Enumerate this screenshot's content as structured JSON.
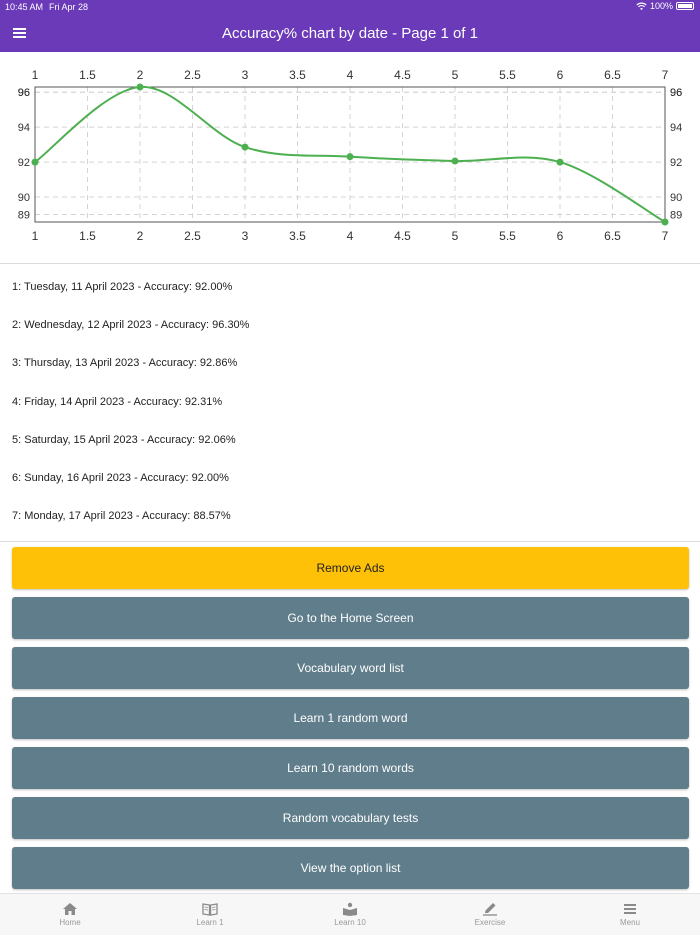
{
  "status_bar": {
    "time": "10:45 AM",
    "date": "Fri Apr 28",
    "battery": "100%"
  },
  "header": {
    "title": "Accuracy% chart by date - Page 1 of 1",
    "menu_icon": "hamburger-icon"
  },
  "chart_data": {
    "type": "line",
    "x": [
      1,
      2,
      3,
      4,
      5,
      6,
      7
    ],
    "values": [
      92.0,
      96.3,
      92.86,
      92.31,
      92.06,
      92.0,
      88.57
    ],
    "x_ticks": [
      "1",
      "1.5",
      "2",
      "2.5",
      "3",
      "3.5",
      "4",
      "4.5",
      "5",
      "5.5",
      "6",
      "6.5",
      "7"
    ],
    "y_ticks": [
      "89",
      "90",
      "92",
      "94",
      "96",
      "96"
    ],
    "xlim": [
      1,
      7
    ],
    "ylim": [
      88.57,
      96.3
    ],
    "grid": true,
    "line_color": "#4caf50"
  },
  "entries": [
    "1: Tuesday, 11 April 2023 - Accuracy: 92.00%",
    "2: Wednesday, 12 April 2023 - Accuracy: 96.30%",
    "3: Thursday, 13 April 2023 - Accuracy: 92.86%",
    "4: Friday, 14 April 2023 - Accuracy: 92.31%",
    "5: Saturday, 15 April 2023 - Accuracy: 92.06%",
    "6: Sunday, 16 April 2023 - Accuracy: 92.00%",
    "7: Monday, 17 April 2023 - Accuracy: 88.57%"
  ],
  "buttons": {
    "remove_ads": "Remove Ads",
    "home_screen": "Go to the Home Screen",
    "word_list": "Vocabulary word list",
    "learn_one": "Learn 1 random word",
    "learn_ten": "Learn 10 random words",
    "random_tests": "Random vocabulary tests",
    "option_list": "View the option list"
  },
  "bottom_nav": [
    {
      "label": "Home",
      "icon": "home-icon"
    },
    {
      "label": "Learn 1",
      "icon": "book-icon"
    },
    {
      "label": "Learn 10",
      "icon": "reader-icon"
    },
    {
      "label": "Exercise",
      "icon": "pencil-icon"
    },
    {
      "label": "Menu",
      "icon": "menu-icon"
    }
  ],
  "colors": {
    "primary": "#6a3ab8",
    "accent": "#ffc107",
    "button": "#607d8b",
    "line": "#4caf50"
  }
}
